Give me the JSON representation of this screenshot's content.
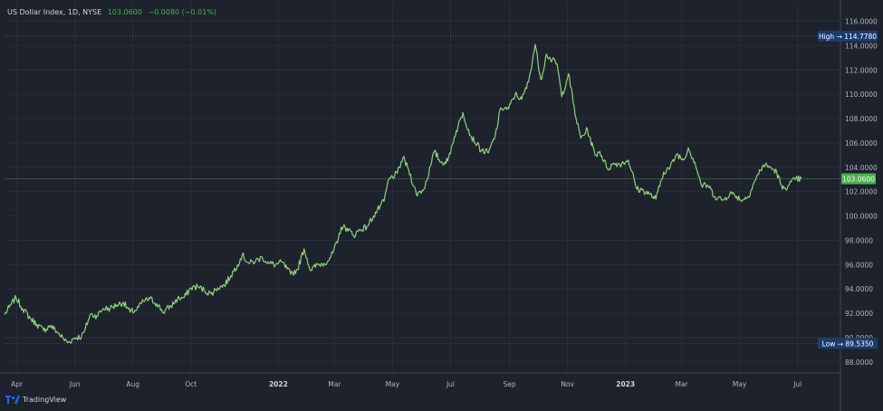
{
  "header": {
    "symbol": "US Dollar Index, 1D, NYSE",
    "last": "103.0600",
    "change": "−0.0080 (−0.01%)"
  },
  "watermark": {
    "text": "TradingView",
    "icon": "tradingview-logo-icon"
  },
  "colors": {
    "background": "#1e222d",
    "line": "#8fd07f",
    "grid": "#2a2e39",
    "axis_text": "#b2b5be",
    "label_bg": "#1c3c6e",
    "price_label_bg": "#4caf50"
  },
  "chart_data": {
    "type": "line",
    "series": [
      {
        "values": [
          [
            "2021-03-19",
            91.9
          ],
          [
            "2021-03-24",
            92.5
          ],
          [
            "2021-03-31",
            93.3
          ],
          [
            "2021-04-07",
            92.4
          ],
          [
            "2021-04-15",
            91.6
          ],
          [
            "2021-04-22",
            91.1
          ],
          [
            "2021-04-29",
            90.6
          ],
          [
            "2021-05-06",
            91.0
          ],
          [
            "2021-05-13",
            90.5
          ],
          [
            "2021-05-20",
            89.9
          ],
          [
            "2021-05-25",
            89.6
          ],
          [
            "2021-06-01",
            90.0
          ],
          [
            "2021-06-08",
            90.1
          ],
          [
            "2021-06-11",
            90.5
          ],
          [
            "2021-06-17",
            91.9
          ],
          [
            "2021-06-24",
            91.8
          ],
          [
            "2021-07-01",
            92.4
          ],
          [
            "2021-07-08",
            92.4
          ],
          [
            "2021-07-15",
            92.7
          ],
          [
            "2021-07-22",
            92.9
          ],
          [
            "2021-07-29",
            92.1
          ],
          [
            "2021-08-05",
            92.3
          ],
          [
            "2021-08-12",
            93.0
          ],
          [
            "2021-08-19",
            93.2
          ],
          [
            "2021-08-26",
            92.8
          ],
          [
            "2021-09-02",
            92.1
          ],
          [
            "2021-09-10",
            92.6
          ],
          [
            "2021-09-17",
            93.2
          ],
          [
            "2021-09-24",
            93.3
          ],
          [
            "2021-10-01",
            94.1
          ],
          [
            "2021-10-08",
            94.2
          ],
          [
            "2021-10-15",
            93.9
          ],
          [
            "2021-10-22",
            93.6
          ],
          [
            "2021-10-29",
            94.1
          ],
          [
            "2021-11-05",
            94.3
          ],
          [
            "2021-11-12",
            95.1
          ],
          [
            "2021-11-19",
            96.0
          ],
          [
            "2021-11-24",
            96.8
          ],
          [
            "2021-12-01",
            96.1
          ],
          [
            "2021-12-08",
            96.3
          ],
          [
            "2021-12-15",
            96.6
          ],
          [
            "2021-12-22",
            96.1
          ],
          [
            "2021-12-29",
            96.0
          ],
          [
            "2022-01-05",
            96.2
          ],
          [
            "2022-01-14",
            95.2
          ],
          [
            "2022-01-21",
            95.6
          ],
          [
            "2022-01-28",
            97.3
          ],
          [
            "2022-02-04",
            95.5
          ],
          [
            "2022-02-11",
            96.0
          ],
          [
            "2022-02-18",
            96.1
          ],
          [
            "2022-02-25",
            96.6
          ],
          [
            "2022-03-04",
            97.8
          ],
          [
            "2022-03-08",
            99.1
          ],
          [
            "2022-03-14",
            99.0
          ],
          [
            "2022-03-21",
            98.4
          ],
          [
            "2022-03-28",
            98.9
          ],
          [
            "2022-04-04",
            99.1
          ],
          [
            "2022-04-11",
            100.0
          ],
          [
            "2022-04-18",
            100.8
          ],
          [
            "2022-04-22",
            101.2
          ],
          [
            "2022-04-27",
            103.0
          ],
          [
            "2022-05-06",
            103.5
          ],
          [
            "2022-05-12",
            104.8
          ],
          [
            "2022-05-18",
            103.8
          ],
          [
            "2022-05-26",
            101.8
          ],
          [
            "2022-06-03",
            102.2
          ],
          [
            "2022-06-10",
            104.1
          ],
          [
            "2022-06-14",
            105.3
          ],
          [
            "2022-06-21",
            104.4
          ],
          [
            "2022-06-28",
            104.5
          ],
          [
            "2022-07-05",
            106.5
          ],
          [
            "2022-07-14",
            108.5
          ],
          [
            "2022-07-22",
            106.6
          ],
          [
            "2022-07-29",
            105.9
          ],
          [
            "2022-08-02",
            105.4
          ],
          [
            "2022-08-10",
            105.2
          ],
          [
            "2022-08-17",
            106.6
          ],
          [
            "2022-08-23",
            108.9
          ],
          [
            "2022-08-31",
            108.8
          ],
          [
            "2022-09-07",
            110.0
          ],
          [
            "2022-09-14",
            109.6
          ],
          [
            "2022-09-21",
            111.0
          ],
          [
            "2022-09-28",
            114.1
          ],
          [
            "2022-10-04",
            111.2
          ],
          [
            "2022-10-10",
            113.3
          ],
          [
            "2022-10-14",
            112.9
          ],
          [
            "2022-10-21",
            112.5
          ],
          [
            "2022-10-26",
            109.8
          ],
          [
            "2022-11-02",
            111.7
          ],
          [
            "2022-11-10",
            108.0
          ],
          [
            "2022-11-15",
            106.4
          ],
          [
            "2022-11-22",
            107.1
          ],
          [
            "2022-11-30",
            105.0
          ],
          [
            "2022-12-05",
            105.3
          ],
          [
            "2022-12-13",
            103.9
          ],
          [
            "2022-12-20",
            104.3
          ],
          [
            "2022-12-28",
            104.3
          ],
          [
            "2023-01-04",
            104.6
          ],
          [
            "2023-01-13",
            102.2
          ],
          [
            "2023-01-20",
            102.1
          ],
          [
            "2023-01-26",
            101.8
          ],
          [
            "2023-02-02",
            101.4
          ],
          [
            "2023-02-10",
            103.6
          ],
          [
            "2023-02-17",
            104.0
          ],
          [
            "2023-02-24",
            105.1
          ],
          [
            "2023-03-03",
            104.6
          ],
          [
            "2023-03-08",
            105.6
          ],
          [
            "2023-03-15",
            104.4
          ],
          [
            "2023-03-22",
            102.5
          ],
          [
            "2023-03-29",
            102.5
          ],
          [
            "2023-04-05",
            101.6
          ],
          [
            "2023-04-14",
            101.3
          ],
          [
            "2023-04-21",
            101.9
          ],
          [
            "2023-04-28",
            101.6
          ],
          [
            "2023-05-04",
            101.3
          ],
          [
            "2023-05-10",
            101.6
          ],
          [
            "2023-05-17",
            102.9
          ],
          [
            "2023-05-26",
            104.2
          ],
          [
            "2023-06-02",
            104.0
          ],
          [
            "2023-06-09",
            103.6
          ],
          [
            "2023-06-15",
            102.2
          ],
          [
            "2023-06-21",
            102.5
          ],
          [
            "2023-06-28",
            103.0
          ],
          [
            "2023-07-05",
            103.06
          ]
        ]
      }
    ],
    "x_ticks": [
      {
        "label": "Apr",
        "date": "2021-04-01"
      },
      {
        "label": "Jun",
        "date": "2021-06-01"
      },
      {
        "label": "Aug",
        "date": "2021-08-01"
      },
      {
        "label": "Oct",
        "date": "2021-10-01"
      },
      {
        "label": "2022",
        "date": "2022-01-01"
      },
      {
        "label": "Mar",
        "date": "2022-03-01"
      },
      {
        "label": "May",
        "date": "2022-05-01"
      },
      {
        "label": "Jul",
        "date": "2022-07-01"
      },
      {
        "label": "Sep",
        "date": "2022-09-01"
      },
      {
        "label": "Nov",
        "date": "2022-11-01"
      },
      {
        "label": "2023",
        "date": "2023-01-01"
      },
      {
        "label": "Mar",
        "date": "2023-03-01"
      },
      {
        "label": "May",
        "date": "2023-05-01"
      },
      {
        "label": "Jul",
        "date": "2023-07-01"
      }
    ],
    "y_ticks": [
      "88.0000",
      "90.0000",
      "92.0000",
      "94.0000",
      "96.0000",
      "98.0000",
      "100.0000",
      "102.0000",
      "104.0000",
      "106.0000",
      "108.0000",
      "110.0000",
      "112.0000",
      "114.0000",
      "116.0000"
    ],
    "ylim": [
      87.1,
      117.6
    ],
    "xlim": [
      "2021-03-19",
      "2023-08-15"
    ],
    "high": {
      "label": "High",
      "value": "114.7780"
    },
    "low": {
      "label": "Low",
      "value": "89.5350"
    },
    "last_price": "103.0600",
    "grid": true
  }
}
